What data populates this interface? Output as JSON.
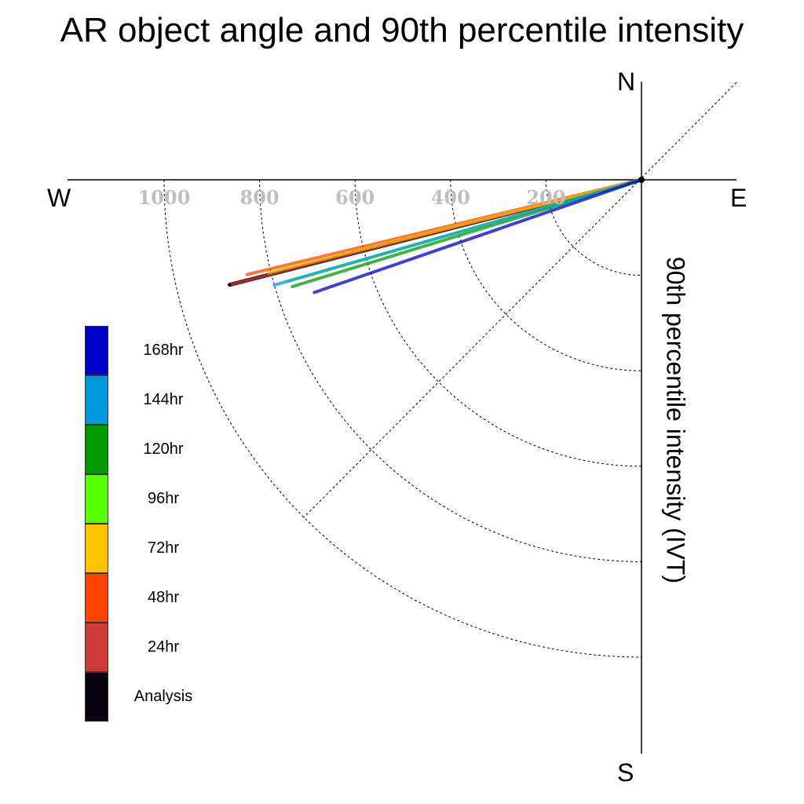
{
  "chart_data": {
    "type": "polar-line",
    "title": "AR object angle and 90th percentile intensity",
    "ylabel": "90th percentile intensity (IVT)",
    "compass": {
      "north": "N",
      "south": "S",
      "east": "E",
      "west": "W"
    },
    "radius_ticks": [
      200,
      400,
      600,
      800,
      1000
    ],
    "radius_tick_labels": [
      "200",
      "400",
      "600",
      "800",
      "1000"
    ],
    "rlim": [
      0,
      1200
    ],
    "grid": true,
    "legend_position": "left",
    "series": [
      {
        "name": "168hr",
        "color": "#0000C8",
        "angle_deg": 199.0,
        "intensity": 725
      },
      {
        "name": "144hr",
        "color": "#0099DD",
        "angle_deg": 196.0,
        "intensity": 800
      },
      {
        "name": "120hr",
        "color": "#009900",
        "angle_deg": 197.0,
        "intensity": 765
      },
      {
        "name": "96hr",
        "color": "#55FF00",
        "angle_deg": 196.0,
        "intensity": 770
      },
      {
        "name": "72hr",
        "color": "#FFC400",
        "angle_deg": 194.0,
        "intensity": 805
      },
      {
        "name": "48hr",
        "color": "#FF4400",
        "angle_deg": 193.5,
        "intensity": 850
      },
      {
        "name": "24hr",
        "color": "#CC3A3A",
        "angle_deg": 194.3,
        "intensity": 885
      },
      {
        "name": "Analysis",
        "color": "#0A0010",
        "angle_deg": 194.3,
        "intensity": 890
      }
    ]
  }
}
